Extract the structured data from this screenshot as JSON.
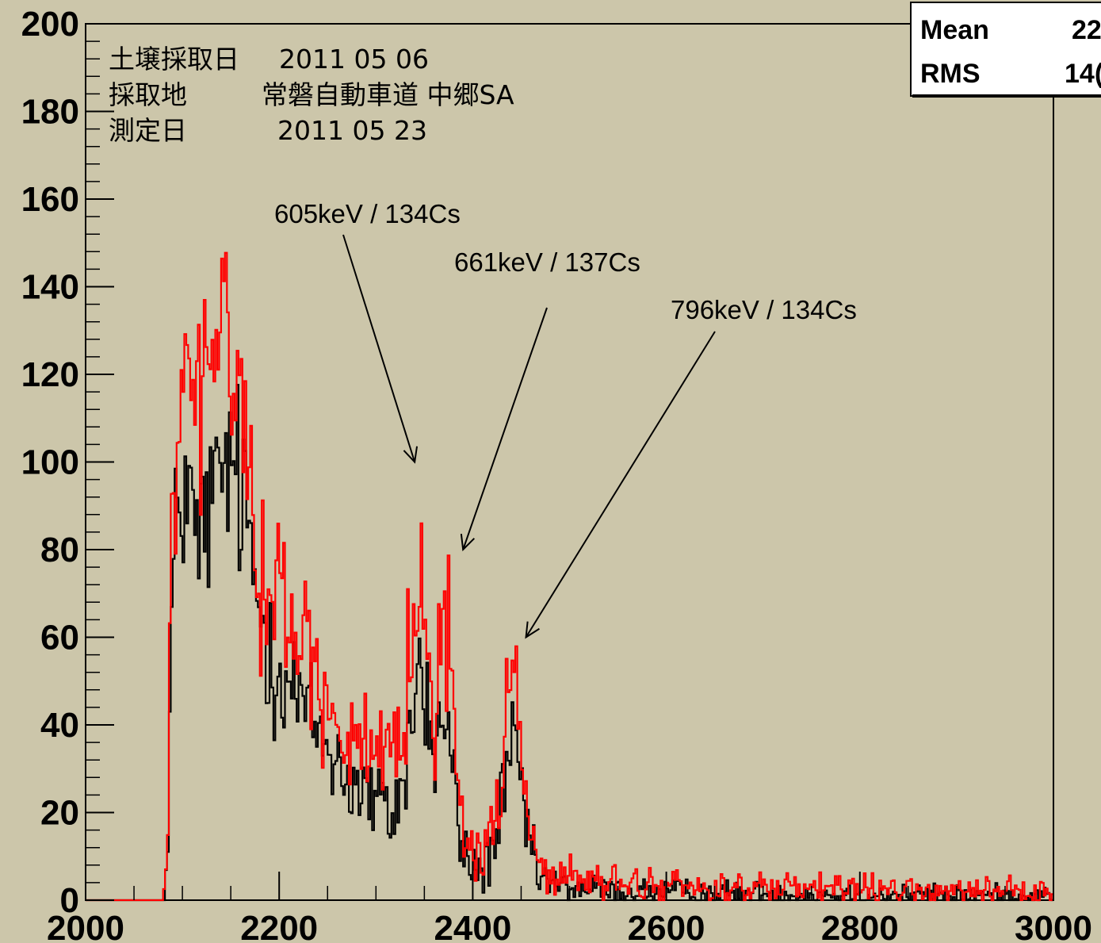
{
  "chart_data": {
    "type": "histogram",
    "xlim": [
      2000,
      3000
    ],
    "ylim": [
      0,
      200
    ],
    "x_ticks": [
      2000,
      2200,
      2400,
      2600,
      2800,
      3000
    ],
    "x_tick_labels": [
      "2000",
      "2200",
      "2400",
      "2600",
      "2800",
      "3000"
    ],
    "y_ticks": [
      0,
      20,
      40,
      60,
      80,
      100,
      120,
      140,
      160,
      180,
      200
    ],
    "y_tick_labels": [
      "0",
      "20",
      "40",
      "60",
      "80",
      "100",
      "120",
      "140",
      "160",
      "180",
      "200"
    ],
    "series": [
      {
        "color": "#000000",
        "envelope": [
          [
            2000,
            0
          ],
          [
            2080,
            0
          ],
          [
            2085,
            10
          ],
          [
            2088,
            58
          ],
          [
            2095,
            90
          ],
          [
            2105,
            95
          ],
          [
            2115,
            80
          ],
          [
            2125,
            88
          ],
          [
            2135,
            92
          ],
          [
            2145,
            100
          ],
          [
            2155,
            97
          ],
          [
            2165,
            88
          ],
          [
            2175,
            72
          ],
          [
            2185,
            62
          ],
          [
            2195,
            56
          ],
          [
            2205,
            52
          ],
          [
            2215,
            48
          ],
          [
            2225,
            44
          ],
          [
            2235,
            40
          ],
          [
            2245,
            37
          ],
          [
            2255,
            34
          ],
          [
            2265,
            30
          ],
          [
            2275,
            27
          ],
          [
            2285,
            25
          ],
          [
            2295,
            23
          ],
          [
            2305,
            21
          ],
          [
            2315,
            19
          ],
          [
            2325,
            24
          ],
          [
            2333,
            34
          ],
          [
            2340,
            45
          ],
          [
            2345,
            55
          ],
          [
            2350,
            48
          ],
          [
            2355,
            38
          ],
          [
            2360,
            33
          ],
          [
            2365,
            38
          ],
          [
            2370,
            42
          ],
          [
            2375,
            37
          ],
          [
            2380,
            27
          ],
          [
            2385,
            18
          ],
          [
            2390,
            11
          ],
          [
            2400,
            7
          ],
          [
            2410,
            7
          ],
          [
            2420,
            11
          ],
          [
            2430,
            21
          ],
          [
            2438,
            30
          ],
          [
            2443,
            34
          ],
          [
            2448,
            29
          ],
          [
            2455,
            18
          ],
          [
            2462,
            9
          ],
          [
            2470,
            5
          ],
          [
            2490,
            3
          ],
          [
            2550,
            2
          ],
          [
            2700,
            1.5
          ],
          [
            3000,
            1
          ]
        ]
      },
      {
        "color": "#ff0000",
        "envelope": [
          [
            2000,
            0
          ],
          [
            2080,
            0
          ],
          [
            2085,
            12
          ],
          [
            2088,
            75
          ],
          [
            2095,
            108
          ],
          [
            2105,
            118
          ],
          [
            2115,
            110
          ],
          [
            2125,
            122
          ],
          [
            2135,
            125
          ],
          [
            2145,
            132
          ],
          [
            2155,
            122
          ],
          [
            2165,
            105
          ],
          [
            2175,
            85
          ],
          [
            2185,
            74
          ],
          [
            2195,
            70
          ],
          [
            2205,
            66
          ],
          [
            2215,
            63
          ],
          [
            2225,
            59
          ],
          [
            2235,
            54
          ],
          [
            2245,
            49
          ],
          [
            2255,
            45
          ],
          [
            2265,
            40
          ],
          [
            2275,
            37
          ],
          [
            2285,
            34
          ],
          [
            2295,
            31
          ],
          [
            2305,
            28
          ],
          [
            2315,
            28
          ],
          [
            2325,
            35
          ],
          [
            2333,
            50
          ],
          [
            2340,
            68
          ],
          [
            2345,
            82
          ],
          [
            2350,
            70
          ],
          [
            2355,
            54
          ],
          [
            2360,
            47
          ],
          [
            2365,
            58
          ],
          [
            2370,
            66
          ],
          [
            2375,
            56
          ],
          [
            2380,
            40
          ],
          [
            2385,
            27
          ],
          [
            2390,
            17
          ],
          [
            2400,
            11
          ],
          [
            2410,
            11
          ],
          [
            2420,
            16
          ],
          [
            2430,
            30
          ],
          [
            2438,
            45
          ],
          [
            2443,
            50
          ],
          [
            2448,
            43
          ],
          [
            2455,
            27
          ],
          [
            2462,
            14
          ],
          [
            2470,
            8
          ],
          [
            2490,
            5
          ],
          [
            2550,
            3.5
          ],
          [
            2700,
            2.5
          ],
          [
            3000,
            1.5
          ]
        ]
      }
    ],
    "stats_box": [
      {
        "label": "Mean",
        "value": "22"
      },
      {
        "label": "RMS",
        "value": "14("
      }
    ],
    "info": {
      "row1_label": "土壌採取日",
      "row1_value": "2011 05 06",
      "row2_label": "採取地",
      "row2_value": "常磐自動車道  中郷SA",
      "row3_label": "測定日",
      "row3_value": "2011 05 23"
    },
    "annotations": [
      {
        "text": "605keV / 134Cs",
        "arrow_to": [
          2340,
          100
        ]
      },
      {
        "text": "661keV / 137Cs",
        "arrow_to": [
          2390,
          80
        ]
      },
      {
        "text": "796keV / 134Cs",
        "arrow_to": [
          2455,
          60
        ]
      }
    ]
  }
}
